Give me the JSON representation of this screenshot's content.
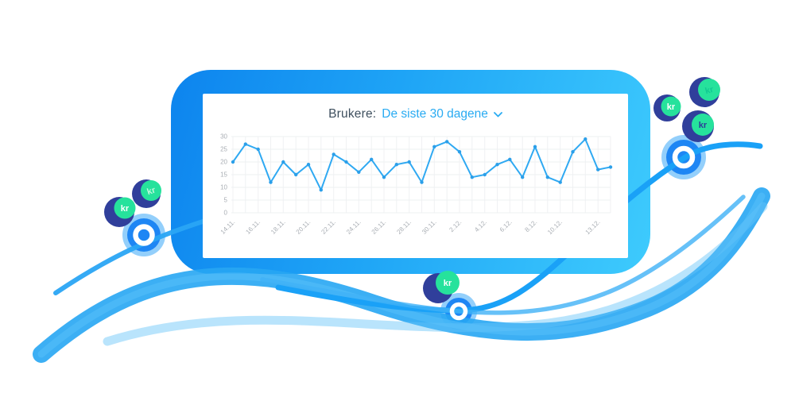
{
  "card": {
    "title_prefix": "Brukere:",
    "title_selected": "De siste 30 dagene",
    "dropdown_icon": "chevron-down"
  },
  "chart_data": {
    "type": "line",
    "title": "Brukere: De siste 30 dagene",
    "x_labels": [
      "14.11.",
      "16.11.",
      "18.11.",
      "20.11.",
      "22.11.",
      "24.11.",
      "26.11.",
      "28.11.",
      "30.11.",
      "2.12.",
      "4.12.",
      "6.12.",
      "8.12.",
      "10.12.",
      "13.12."
    ],
    "x_label_indices": [
      0,
      2,
      4,
      6,
      8,
      10,
      12,
      14,
      16,
      18,
      20,
      22,
      24,
      26,
      29
    ],
    "values": [
      20,
      27,
      25,
      12,
      20,
      15,
      19,
      9,
      23,
      20,
      16,
      21,
      14,
      19,
      20,
      12,
      26,
      28,
      24,
      14,
      15,
      19,
      21,
      14,
      26,
      14,
      12,
      24,
      29,
      17,
      18
    ],
    "ylim": [
      0,
      30
    ],
    "yticks": [
      0,
      5,
      10,
      15,
      20,
      25,
      30
    ],
    "grid": true,
    "legend": "none",
    "line_color": "#2fa9f2",
    "point_color": "#2b9fe9"
  },
  "decor": {
    "coin_label": "kr",
    "colors": {
      "card_gradient_start": "#0d84ee",
      "card_gradient_end": "#3ecbfd",
      "wave_blue": "#27a6f3",
      "coin_navy": "#303f9b",
      "coin_green": "#26e29c",
      "ring_blue": "#1f7ff2",
      "title_text": "#3e4f5e",
      "title_accent": "#29abf2"
    }
  }
}
